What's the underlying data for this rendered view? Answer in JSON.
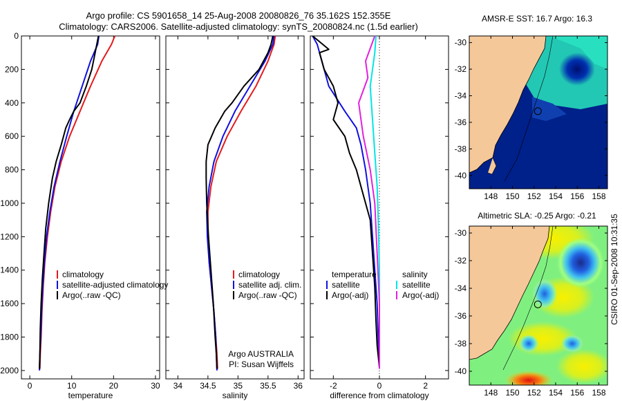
{
  "title_line1": "Argo profile: CS 5901658_14 25-Aug-2008 20080826_76 35.162S 152.355E",
  "title_line2": "Climatology: CARS2006. Satellite-adjusted climatology: synTS_20080824.nc (1.5d earlier)",
  "side_label": "CSIRO 01-Sep-2008 10:31:35",
  "credit_line1": "Argo AUSTRALIA",
  "credit_line2": "PI: Susan Wijffels",
  "colors": {
    "climatology": "#e31a1c",
    "satellite": "#1010e0",
    "argo": "#000000",
    "sal_satellite": "#00e5e5",
    "sal_argo": "#e020e0",
    "land": "#f5c89a"
  },
  "chart_data": [
    {
      "type": "line",
      "id": "temperature",
      "xlabel": "temperature",
      "ylabel": "",
      "xlim": [
        -2,
        31
      ],
      "ylim": [
        2050,
        0
      ],
      "xticks": [
        0,
        10,
        20,
        30
      ],
      "yticks": [
        0,
        200,
        400,
        600,
        800,
        1000,
        1200,
        1400,
        1600,
        1800,
        2000
      ],
      "legend": [
        "climatology",
        "satellite-adjusted climatology",
        "Argo(..raw -QC)"
      ],
      "series": [
        {
          "name": "climatology",
          "color": "#e31a1c",
          "x": [
            20.3,
            19.5,
            17.2,
            14.5,
            12.0,
            9.5,
            7.5,
            6.0,
            5.0,
            4.2,
            3.6,
            3.2,
            2.9,
            2.7,
            2.5,
            2.4
          ],
          "y": [
            0,
            50,
            150,
            300,
            450,
            600,
            750,
            900,
            1050,
            1200,
            1350,
            1500,
            1650,
            1800,
            1900,
            1990
          ]
        },
        {
          "name": "satellite-adjusted climatology",
          "color": "#1010e0",
          "x": [
            16.5,
            16.2,
            14.5,
            12.5,
            10.5,
            8.8,
            7.2,
            5.8,
            4.8,
            4.0,
            3.5,
            3.1,
            2.8,
            2.6,
            2.4,
            2.3
          ],
          "y": [
            0,
            50,
            150,
            300,
            450,
            600,
            750,
            900,
            1050,
            1200,
            1350,
            1500,
            1650,
            1800,
            1900,
            2000
          ]
        },
        {
          "name": "Argo(..raw -QC)",
          "color": "#000000",
          "x": [
            16.4,
            16.0,
            15.6,
            14.8,
            13.5,
            12.0,
            10.5,
            9.5,
            8.6,
            7.5,
            6.3,
            5.4,
            4.5,
            3.8,
            3.4,
            3.0,
            2.7,
            2.5,
            2.4,
            2.3
          ],
          "y": [
            0,
            50,
            100,
            200,
            300,
            400,
            450,
            500,
            550,
            650,
            750,
            850,
            1000,
            1150,
            1300,
            1450,
            1600,
            1750,
            1900,
            1990
          ]
        }
      ]
    },
    {
      "type": "line",
      "id": "salinity",
      "xlabel": "salinity",
      "ylabel": "",
      "xlim": [
        33.8,
        36.1
      ],
      "ylim": [
        2050,
        0
      ],
      "xticks": [
        34,
        34.5,
        35,
        35.5,
        36
      ],
      "yticks": [
        0,
        200,
        400,
        600,
        800,
        1000,
        1200,
        1400,
        1600,
        1800,
        2000
      ],
      "legend": [
        "climatology",
        "satellite adj. clim.",
        "Argo(..raw -QC)"
      ],
      "series": [
        {
          "name": "climatology",
          "color": "#e31a1c",
          "x": [
            35.62,
            35.6,
            35.5,
            35.3,
            35.05,
            34.82,
            34.64,
            34.55,
            34.5,
            34.5,
            34.52,
            34.56,
            34.6,
            34.63,
            34.65,
            34.66
          ],
          "y": [
            0,
            50,
            150,
            300,
            450,
            600,
            750,
            900,
            1050,
            1200,
            1350,
            1500,
            1650,
            1800,
            1900,
            1990
          ]
        },
        {
          "name": "satellite adj. clim.",
          "color": "#1010e0",
          "x": [
            35.6,
            35.58,
            35.45,
            35.2,
            34.95,
            34.75,
            34.6,
            34.52,
            34.48,
            34.49,
            34.52,
            34.56,
            34.6,
            34.63,
            34.64,
            34.65
          ],
          "y": [
            0,
            50,
            150,
            300,
            450,
            600,
            750,
            900,
            1050,
            1200,
            1350,
            1500,
            1650,
            1800,
            1900,
            2000
          ]
        },
        {
          "name": "Argo(..raw -QC)",
          "color": "#000000",
          "x": [
            35.58,
            35.55,
            35.5,
            35.35,
            35.1,
            34.9,
            34.78,
            34.62,
            34.5,
            34.47,
            34.47,
            34.48,
            34.51,
            34.55,
            34.59,
            34.62,
            34.64,
            34.65
          ],
          "y": [
            0,
            50,
            100,
            200,
            300,
            400,
            450,
            550,
            650,
            750,
            850,
            1000,
            1200,
            1400,
            1600,
            1800,
            1900,
            1990
          ]
        }
      ]
    },
    {
      "type": "line",
      "id": "difference",
      "xlabel": "difference from climatology",
      "ylabel": "",
      "xlim": [
        -3,
        3
      ],
      "ylim": [
        2050,
        0
      ],
      "xticks": [
        -2,
        0,
        2
      ],
      "yticks": [
        0,
        200,
        400,
        600,
        800,
        1000,
        1200,
        1400,
        1600,
        1800,
        2000
      ],
      "legend_left_title": "temperature",
      "legend_right_title": "salinity",
      "legend": [
        "satellite",
        "Argo(-adj)",
        "satellite",
        "Argo(-adj)"
      ],
      "series": [
        {
          "name": "satellite",
          "group": "temperature",
          "color": "#1010e0",
          "x": [
            -2.9,
            -2.7,
            -2.5,
            -2.2,
            -1.5,
            -1.0,
            -0.8,
            -0.6,
            -0.5,
            -0.4,
            -0.3,
            -0.2,
            -0.1,
            -0.05,
            0.0
          ],
          "y": [
            0,
            50,
            150,
            300,
            450,
            550,
            650,
            800,
            900,
            1000,
            1200,
            1400,
            1600,
            1800,
            1990
          ]
        },
        {
          "name": "Argo(-adj)",
          "group": "temperature",
          "color": "#000000",
          "x": [
            -2.9,
            -2.2,
            -2.6,
            -2.4,
            -2.0,
            -1.8,
            -2.0,
            -1.5,
            -1.3,
            -1.0,
            -0.8,
            -0.6,
            -0.4,
            -0.3,
            -0.2,
            -0.15,
            -0.1,
            0.0
          ],
          "y": [
            0,
            80,
            100,
            200,
            300,
            400,
            500,
            600,
            700,
            800,
            900,
            1000,
            1100,
            1300,
            1500,
            1700,
            1850,
            1980
          ]
        },
        {
          "name": "satellite",
          "group": "salinity",
          "color": "#00e5e5",
          "x": [
            -0.15,
            -0.2,
            -0.4,
            -0.3,
            -0.2,
            -0.1,
            -0.05,
            0.0,
            0.0,
            0.0
          ],
          "y": [
            0,
            100,
            300,
            500,
            700,
            900,
            1100,
            1400,
            1700,
            1990
          ]
        },
        {
          "name": "Argo(-adj)",
          "group": "salinity",
          "color": "#e020e0",
          "x": [
            -0.2,
            -0.6,
            -0.5,
            -0.9,
            -0.7,
            -0.4,
            -0.2,
            -0.1,
            0.0,
            0.0
          ],
          "y": [
            0,
            150,
            250,
            400,
            600,
            800,
            1000,
            1300,
            1600,
            1990
          ]
        }
      ]
    },
    {
      "type": "heatmap",
      "id": "sst_map",
      "title": "AMSR-E SST: 16.7 Argo: 16.3",
      "xlim": [
        146,
        158.8
      ],
      "ylim": [
        -41,
        -29.5
      ],
      "xticks": [
        148,
        150,
        152,
        154,
        156,
        158
      ],
      "yticks": [
        -30,
        -32,
        -34,
        -36,
        -38,
        -40
      ],
      "argo_position": [
        152.355,
        -35.162
      ]
    },
    {
      "type": "heatmap",
      "id": "sla_map",
      "title": "Altimetric SLA: -0.25 Argo: -0.21",
      "xlim": [
        146,
        158.8
      ],
      "ylim": [
        -41,
        -29.5
      ],
      "xticks": [
        148,
        150,
        152,
        154,
        156,
        158
      ],
      "yticks": [
        -30,
        -32,
        -34,
        -36,
        -38,
        -40
      ],
      "argo_position": [
        152.355,
        -35.162
      ]
    }
  ]
}
